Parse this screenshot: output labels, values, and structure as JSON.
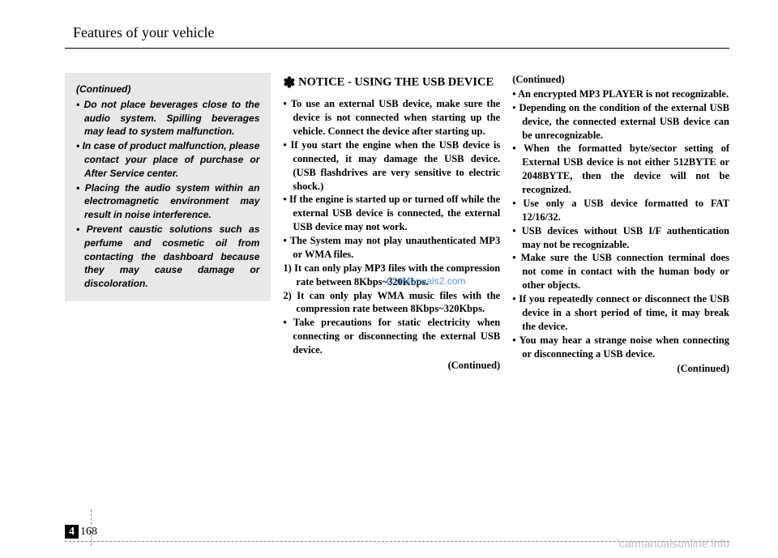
{
  "header": "Features of your vehicle",
  "box": {
    "title": "(Continued)",
    "items": [
      "Do not place beverages close to the audio system. Spilling beverages may lead to system malfunction.",
      "In case of product malfunction, please contact your place of purchase or After Service center.",
      "Placing the audio system within an electromagnetic environment may result in noise interference.",
      "Prevent caustic solutions such as perfume and cosmetic oil from contacting the dashboard because they may cause damage or discoloration."
    ]
  },
  "col2": {
    "notice_label": "NOTICE",
    "notice_suffix": " - USING THE USB DEVICE",
    "bullets_a": [
      "To use an external USB device, make sure the device is not connected when starting up the vehicle. Connect the device after starting up.",
      "If you start the engine when the USB device is connected, it may damage the USB device. (USB flashdrives are very sensitive to electric shock.)",
      "If the engine is started up or turned off while the external USB device is connected, the external USB device may not work.",
      "The System may not play unauthenticated MP3 or WMA files."
    ],
    "numbered": [
      "1) It can only play MP3 files with the compression rate between 8Kbps~320Kbps.",
      "2) It can only play WMA music files with the compression rate between 8Kbps~320Kbps."
    ],
    "bullets_b": [
      "Take precautions for static electricity when connecting or disconnecting the external USB device."
    ],
    "continued": "(Continued)"
  },
  "col3": {
    "continued_top": "(Continued)",
    "bullets": [
      "An encrypted MP3 PLAYER is not recognizable.",
      "Depending on the condition of the external USB device, the connected external USB device can be unrecognizable.",
      "When the formatted byte/sector setting of External USB device is not either 512BYTE or 2048BYTE, then the device will not be recognized.",
      "Use only a USB device formatted to FAT 12/16/32.",
      "USB devices without USB I/F authentication may not be recognizable.",
      "Make sure the USB connection terminal does not come in contact with the human body or other objects.",
      "If you repeatedly connect or disconnect the USB device in a short period of time, it may break the device.",
      "You may hear a strange noise when connecting or disconnecting a USB device."
    ],
    "continued_bottom": "(Continued)"
  },
  "watermark_center": "CarManuals2.com",
  "page_section": "4",
  "page_number": "168",
  "footer_watermark": "carmanualsonline.info"
}
